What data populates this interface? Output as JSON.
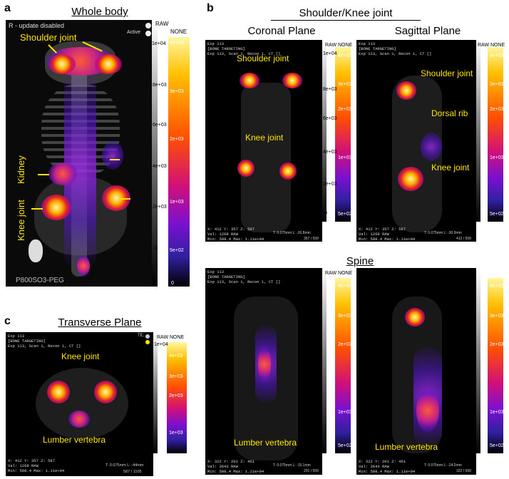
{
  "panels": {
    "a": {
      "letter": "a",
      "title": "Whole body",
      "status": "R - update disabled",
      "active": "Active",
      "colorbar_raw": "RAW",
      "colorbar_none": "NONE",
      "labels": {
        "shoulder": "Shoulder joint",
        "kidney": "Kidney",
        "knee": "Knee joint"
      },
      "footer": "P800SO3-PEG",
      "gray_ticks": [
        "1e+04",
        "8e+03",
        "6e+03",
        "4e+03",
        "2e+03",
        "0"
      ],
      "color_ticks": [
        "4e+03",
        "3e+03",
        "2e+03",
        "1e+03",
        "5e+02",
        "0"
      ]
    },
    "b": {
      "letter": "b",
      "title": "Shoulder/Knee joint",
      "coronal_title": "Coronal Plane",
      "sagittal_title": "Sagittal Plane",
      "spine_title": "Spine",
      "coronal_labels": {
        "shoulder": "Shoulder joint",
        "knee": "Knee joint"
      },
      "sagittal_labels": {
        "shoulder": "Shoulder joint",
        "rib": "Dorsal rib",
        "knee": "Knee joint"
      },
      "spine_label_left": "Lumber vertebra",
      "spine_label_right": "Lumber vertebra"
    },
    "c": {
      "letter": "c",
      "title": "Transverse Plane",
      "labels": {
        "knee": "Knee joint",
        "vertebra": "Lumber vertebra"
      }
    }
  },
  "viewer": {
    "exp": "Exp 113",
    "bone": "[BONE TARGETING]",
    "scan": "Exp 113, Scan 1, Recon 1, CT []",
    "te": "TE:",
    "raw": "RAW",
    "none": "NONE",
    "gray_ticks": [
      "1e+04",
      "8e+03",
      "6e+03",
      "4e+03",
      "2e+03",
      "0"
    ],
    "color_ticks": [
      "4e+03",
      "3e+03",
      "2e+03",
      "1e+03",
      "5e+02"
    ],
    "coord_coronal": "X: 412 Y: 357 Z: 587\nVal: 1268 RAW\nMin: 598.4 Max: 1.11e+04",
    "slice_coronal": "T: 0.075mm L: -26.8mm",
    "frame_coronal": "357 / 599",
    "coord_sagittal": "X: 412 Y: 357 Z: 587\nVal: 1268 RAW\nMin: 598.4 Max: 1.11e+04",
    "slice_sagittal": "T: 0.075mm L: -30.9mm",
    "frame_sagittal": "412 / 599",
    "coord_spine_l": "X: 322 Y: 201 Z: 461\nVal: 3643 RAW\nMin: 598.4 Max: 1.11e+04",
    "slice_spine_l": "T: 0.075mm L: -15.1mm",
    "frame_spine_l": "201 / 599",
    "coord_spine_r": "X: 322 Y: 201 Z: 461\nVal: 3643 RAW\nMin: 598.4 Max: 1.11e+04",
    "slice_spine_r": "T: 0.075mm L: -24.2mm",
    "frame_spine_r": "322 / 599",
    "coord_trans": "X: 412 Y: 357 Z: 587\nVal: 1268 RAW\nMin: 598.4 Max: 1.11e+04",
    "slice_trans": "T: 0.075mm L: -44mm",
    "frame_trans": "587 / 1105"
  }
}
